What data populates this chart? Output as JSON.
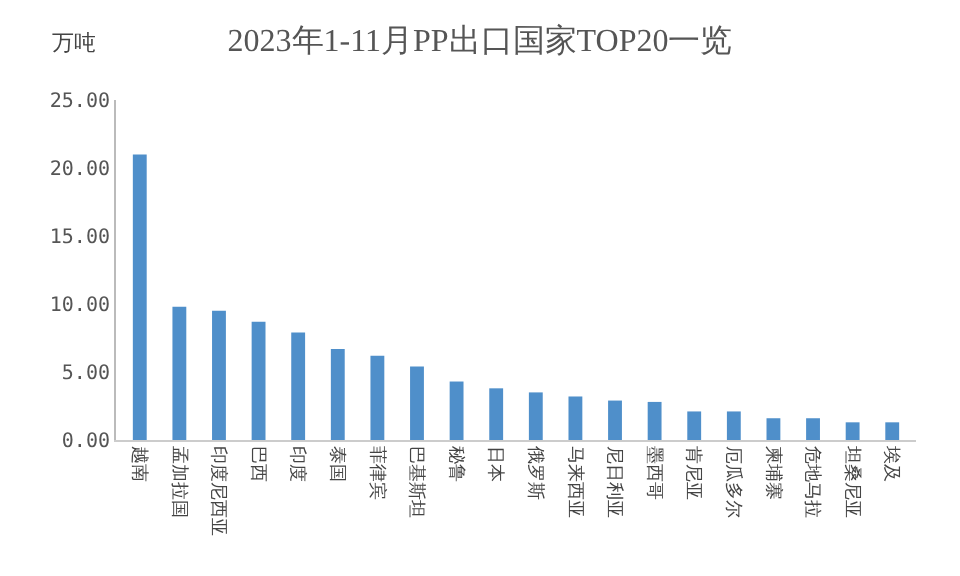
{
  "chart_data": {
    "type": "bar",
    "title": "2023年1-11月PP出口国家TOP20一览",
    "ylabel": "万吨",
    "categories": [
      "越南",
      "孟加拉国",
      "印度尼西亚",
      "巴西",
      "印度",
      "泰国",
      "菲律宾",
      "巴基斯坦",
      "秘鲁",
      "日本",
      "俄罗斯",
      "马来西亚",
      "尼日利亚",
      "墨西哥",
      "肯尼亚",
      "厄瓜多尔",
      "柬埔寨",
      "危地马拉",
      "坦桑尼亚",
      "埃及"
    ],
    "values": [
      21.0,
      9.8,
      9.5,
      8.7,
      7.9,
      6.7,
      6.2,
      5.4,
      4.3,
      3.8,
      3.5,
      3.2,
      2.9,
      2.8,
      2.1,
      2.1,
      1.6,
      1.6,
      1.3,
      1.3
    ],
    "color": "#4f8fca",
    "ylim": [
      0,
      25
    ],
    "yticks": [
      {
        "value": 0,
        "label": "0.00"
      },
      {
        "value": 5,
        "label": "5.00"
      },
      {
        "value": 10,
        "label": "10.00"
      },
      {
        "value": 15,
        "label": "15.00"
      },
      {
        "value": 20,
        "label": "20.00"
      },
      {
        "value": 25,
        "label": "25.00"
      }
    ],
    "grid": false,
    "legend": false
  }
}
